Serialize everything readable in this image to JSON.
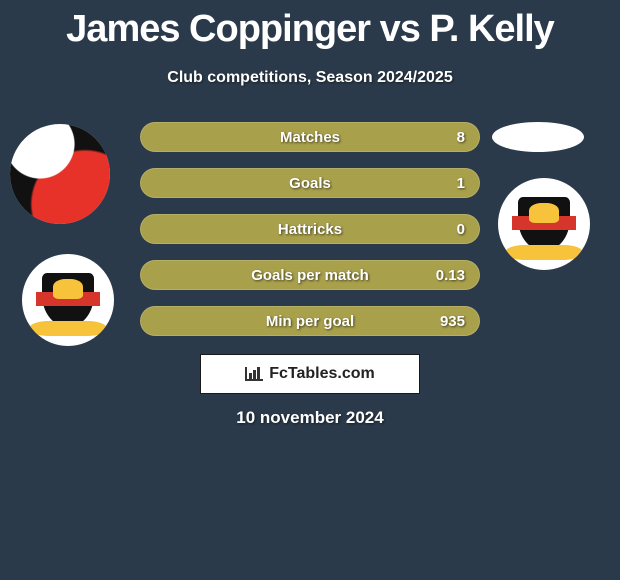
{
  "title_color": "#ffffff",
  "background_color": "#2b3a4a",
  "bar_color": "#a9a04c",
  "header": {
    "title": "James Coppinger vs P. Kelly",
    "subtitle": "Club competitions, Season 2024/2025"
  },
  "player1": {
    "name": "James Coppinger",
    "club_crest": "doncaster"
  },
  "player2": {
    "name": "P. Kelly",
    "club_crest": "doncaster"
  },
  "stats": [
    {
      "label": "Matches",
      "value": "8"
    },
    {
      "label": "Goals",
      "value": "1"
    },
    {
      "label": "Hattricks",
      "value": "0"
    },
    {
      "label": "Goals per match",
      "value": "0.13"
    },
    {
      "label": "Min per goal",
      "value": "935"
    }
  ],
  "brand": {
    "text": "FcTables.com"
  },
  "date": "10 november 2024"
}
